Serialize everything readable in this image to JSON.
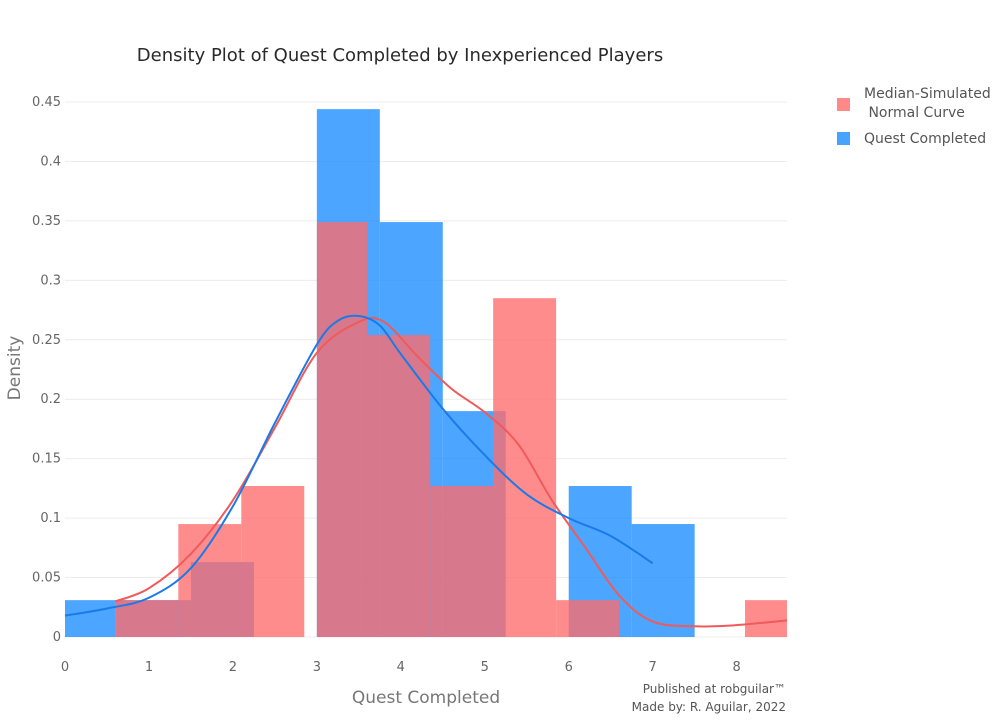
{
  "chart_data": {
    "type": "bar",
    "title": "Density Plot of Quest Completed by Inexperienced Players",
    "xlabel": "Quest Completed",
    "ylabel": "Density",
    "xlim": [
      0,
      8.6
    ],
    "ylim": [
      0,
      0.45
    ],
    "x_ticks": [
      "0",
      "1",
      "2",
      "3",
      "4",
      "5",
      "6",
      "7",
      "8"
    ],
    "y_ticks": [
      "0",
      "0.05",
      "0.1",
      "0.15",
      "0.2",
      "0.25",
      "0.3",
      "0.35",
      "0.4",
      "0.45"
    ],
    "grid": true,
    "legend_position": "top-right",
    "series": [
      {
        "name": "Median-Simulated\n Normal Curve",
        "color": "#ff6b6b",
        "kind": "histogram",
        "bins": [
          {
            "x0": 0.6,
            "x1": 1.35,
            "y": 0.031
          },
          {
            "x0": 1.35,
            "x1": 2.1,
            "y": 0.095
          },
          {
            "x0": 2.1,
            "x1": 2.85,
            "y": 0.127
          },
          {
            "x0": 3.0,
            "x1": 3.6,
            "y": 0.349
          },
          {
            "x0": 3.6,
            "x1": 4.35,
            "y": 0.254
          },
          {
            "x0": 4.35,
            "x1": 5.1,
            "y": 0.127
          },
          {
            "x0": 5.1,
            "x1": 5.85,
            "y": 0.285
          },
          {
            "x0": 5.85,
            "x1": 6.6,
            "y": 0.031
          },
          {
            "x0": 8.1,
            "x1": 8.6,
            "y": 0.031
          }
        ],
        "curve": {
          "color": "#f05a5a",
          "x": [
            0.6,
            1.0,
            1.5,
            2.0,
            2.5,
            3.0,
            3.5,
            3.8,
            4.2,
            4.6,
            5.0,
            5.4,
            5.8,
            6.2,
            6.6,
            7.0,
            7.5,
            8.0,
            8.6
          ],
          "y": [
            0.03,
            0.041,
            0.07,
            0.115,
            0.176,
            0.239,
            0.265,
            0.265,
            0.236,
            0.209,
            0.189,
            0.162,
            0.115,
            0.075,
            0.035,
            0.013,
            0.009,
            0.01,
            0.014
          ]
        }
      },
      {
        "name": "Quest Completed",
        "color": "#1a8cff",
        "kind": "histogram",
        "bins": [
          {
            "x0": 0.0,
            "x1": 0.6,
            "y": 0.031
          },
          {
            "x0": 0.6,
            "x1": 1.5,
            "y": 0.031
          },
          {
            "x0": 1.5,
            "x1": 2.25,
            "y": 0.063
          },
          {
            "x0": 3.0,
            "x1": 3.75,
            "y": 0.444
          },
          {
            "x0": 3.75,
            "x1": 4.5,
            "y": 0.349
          },
          {
            "x0": 4.5,
            "x1": 5.25,
            "y": 0.19
          },
          {
            "x0": 6.0,
            "x1": 6.75,
            "y": 0.127
          },
          {
            "x0": 6.75,
            "x1": 7.5,
            "y": 0.095
          }
        ],
        "curve": {
          "color": "#1a7ae8",
          "x": [
            0.0,
            0.5,
            1.0,
            1.5,
            2.0,
            2.5,
            3.0,
            3.25,
            3.5,
            3.75,
            4.0,
            4.5,
            5.0,
            5.5,
            6.0,
            6.5,
            7.0
          ],
          "y": [
            0.018,
            0.024,
            0.033,
            0.058,
            0.11,
            0.18,
            0.246,
            0.266,
            0.27,
            0.262,
            0.238,
            0.192,
            0.153,
            0.12,
            0.1,
            0.085,
            0.062
          ]
        }
      }
    ],
    "annotations": [
      "Published at robguilar™",
      "Made by:  R. Aguilar, 2022"
    ]
  }
}
